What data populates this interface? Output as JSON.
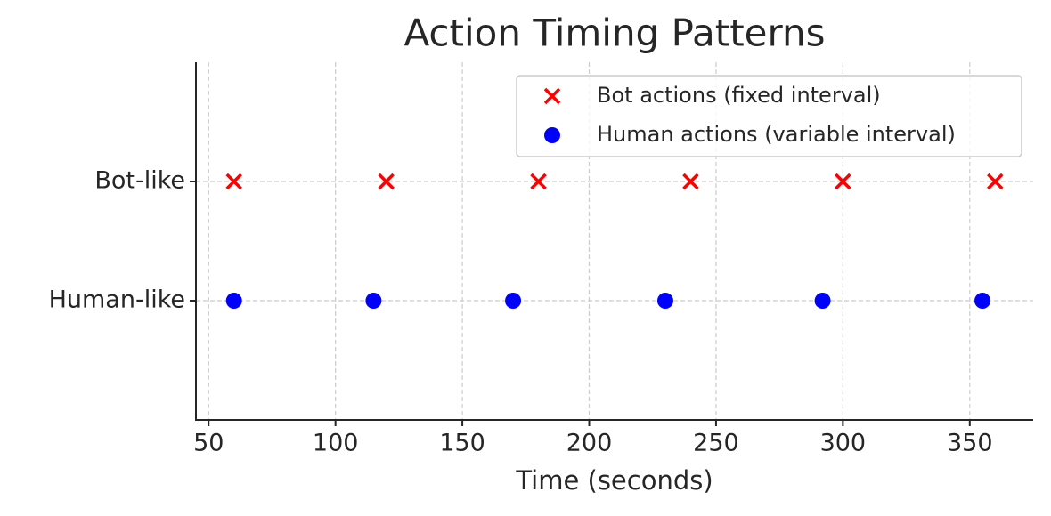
{
  "chart_data": {
    "type": "scatter",
    "title": "Action Timing Patterns",
    "x_label": "Time (seconds)",
    "series": [
      {
        "name": "Bot actions (fixed interval)",
        "color": "#ff0000",
        "marker": "x",
        "x": [
          60,
          120,
          180,
          240,
          300,
          360
        ],
        "y": [
          1,
          1,
          1,
          1,
          1,
          1
        ]
      },
      {
        "name": "Human actions (variable interval)",
        "color": "#0000ff",
        "marker": "o",
        "x": [
          60,
          115,
          170,
          230,
          292,
          355
        ],
        "y": [
          0,
          0,
          0,
          0,
          0,
          0
        ]
      }
    ],
    "xlim": [
      45,
      375
    ],
    "xticks": [
      50,
      100,
      150,
      200,
      250,
      300,
      350
    ],
    "ylim": [
      -1,
      2
    ],
    "yticks": [
      {
        "value": 0,
        "label": "Human-like"
      },
      {
        "value": 1,
        "label": "Bot-like"
      }
    ],
    "grid": true,
    "legend": "upper right"
  }
}
